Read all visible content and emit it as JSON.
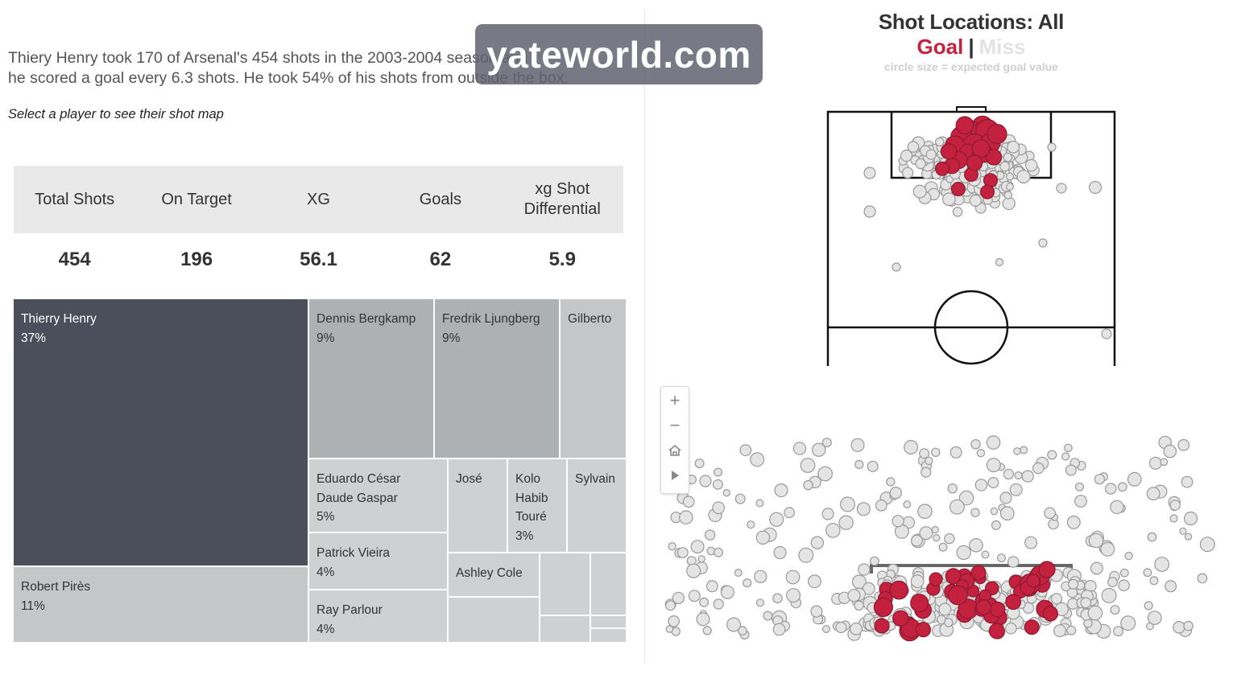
{
  "intro_line1": "Thiery Henry took 170 of Arsenal's 454 shots in the 2003-2004 season and",
  "intro_line2": "he scored a goal every 6.3 shots. He took 54% of his shots from outside the box.",
  "hint": "Select a player to see their shot map",
  "kpis": [
    {
      "label": "Total Shots",
      "value": "454"
    },
    {
      "label": "On Target",
      "value": "196"
    },
    {
      "label": "XG",
      "value": "56.1"
    },
    {
      "label": "Goals",
      "value": "62"
    },
    {
      "label": "xg Shot Differential",
      "value": "5.9"
    }
  ],
  "shot_map": {
    "title": "Shot Locations: All",
    "legend_goal": "Goal",
    "legend_sep": "|",
    "legend_miss": "Miss",
    "note": "circle size = expected goal value"
  },
  "watermark": "yateworld.com",
  "colors": {
    "goal": "#c4213f",
    "miss": "#e4e4e4",
    "selected": "#4b4f5c",
    "tile": "#c4c6c8"
  },
  "zoom_controls": [
    "plus-icon",
    "minus-icon",
    "home-icon",
    "play-icon"
  ],
  "chart_data": [
    {
      "type": "treemap",
      "measure": "share of team shots",
      "items": [
        {
          "name": "Thierry Henry",
          "pct": "37%",
          "value": 37,
          "selected": true
        },
        {
          "name": "Robert Pirès",
          "pct": "11%",
          "value": 11
        },
        {
          "name": "Dennis Bergkamp",
          "pct": "9%",
          "value": 9
        },
        {
          "name": "Fredrik Ljungberg",
          "pct": "9%",
          "value": 9
        },
        {
          "name": "Gilberto",
          "pct": "",
          "value": 7
        },
        {
          "name": "Eduardo César Daude Gaspar",
          "pct": "5%",
          "value": 5
        },
        {
          "name": "José",
          "pct": "",
          "value": 4
        },
        {
          "name": "Kolo Habib Touré",
          "pct": "3%",
          "value": 3
        },
        {
          "name": "Sylvain",
          "pct": "",
          "value": 3
        },
        {
          "name": "Patrick Vieira",
          "pct": "4%",
          "value": 4
        },
        {
          "name": "Ray Parlour",
          "pct": "4%",
          "value": 4
        },
        {
          "name": "Ashley Cole",
          "pct": "",
          "value": 2
        }
      ]
    },
    {
      "type": "scatter",
      "title": "Shot Locations: All",
      "encoding": "circle size = expected goal value; color = outcome (Goal / Miss)",
      "series": [
        {
          "name": "Goal",
          "points": [
            [
              0.45,
              0.08,
              0.5
            ],
            [
              0.55,
              0.07,
              0.6
            ],
            [
              0.48,
              0.12,
              0.8
            ],
            [
              0.52,
              0.15,
              0.9
            ],
            [
              0.58,
              0.1,
              0.7
            ],
            [
              0.42,
              0.14,
              0.6
            ],
            [
              0.5,
              0.2,
              0.7
            ],
            [
              0.6,
              0.18,
              0.5
            ],
            [
              0.38,
              0.2,
              0.5
            ],
            [
              0.46,
              0.25,
              0.4
            ],
            [
              0.55,
              0.25,
              0.5
            ],
            [
              0.4,
              0.3,
              0.4
            ],
            [
              0.62,
              0.28,
              0.3
            ],
            [
              0.36,
              0.34,
              0.3
            ],
            [
              0.48,
              0.4,
              0.2
            ],
            [
              0.6,
              0.44,
              0.2
            ],
            [
              0.3,
              0.36,
              0.2
            ],
            [
              0.4,
              0.5,
              0.2
            ],
            [
              0.58,
              0.52,
              0.2
            ],
            [
              0.44,
              0.06,
              0.4
            ],
            [
              0.54,
              0.22,
              0.4
            ],
            [
              0.64,
              0.12,
              0.5
            ],
            [
              0.34,
              0.24,
              0.3
            ],
            [
              0.5,
              0.32,
              0.3
            ]
          ]
        },
        {
          "name": "Miss",
          "note": "several hundred shots scattered across the attacking third; densest around the six-yard and penalty area"
        }
      ]
    }
  ]
}
